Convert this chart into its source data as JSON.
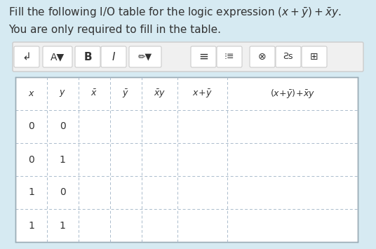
{
  "bg_color": "#d6eaf2",
  "toolbar_bg": "#f5f5f5",
  "toolbar_border": "#cccccc",
  "table_bg": "#ffffff",
  "table_outer_border": "#b0bec5",
  "cell_border_color": "#b0bec5",
  "text_color": "#333333",
  "title1": "Fill the following I/O table for the logic expression ",
  "title2": "You are only required to fill in the table.",
  "data_rows": [
    [
      "0",
      "0",
      "",
      "",
      "",
      "",
      ""
    ],
    [
      "0",
      "1",
      "",
      "",
      "",
      "",
      ""
    ],
    [
      "1",
      "0",
      "",
      "",
      "",
      "",
      ""
    ],
    [
      "1",
      "1",
      "",
      "",
      "",
      "",
      ""
    ]
  ],
  "figsize": [
    5.36,
    3.55
  ],
  "dpi": 100
}
